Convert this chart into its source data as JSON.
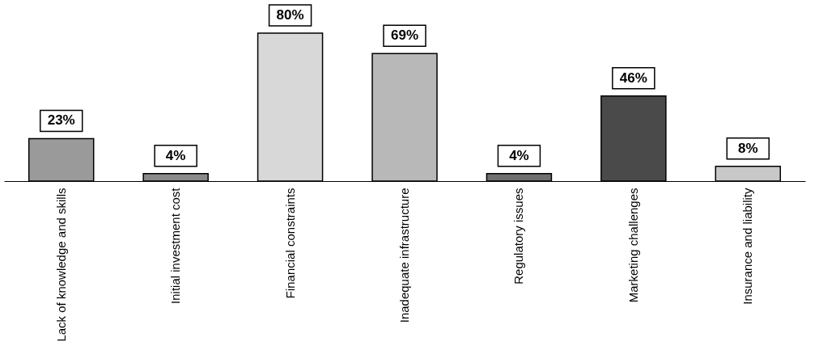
{
  "chart_data": {
    "type": "bar",
    "categories": [
      "Lack of knowledge and skills",
      "Initial investment cost",
      "Financial constraints",
      "Inadequate infrastructure",
      "Regulatory issues",
      "Marketing challenges",
      "Insurance and liability"
    ],
    "values": [
      23,
      4,
      80,
      69,
      4,
      46,
      8
    ],
    "colors": [
      "#9a9a9a",
      "#8a8a8a",
      "#d8d8d8",
      "#b8b8b8",
      "#707070",
      "#4a4a4a",
      "#c8c8c8"
    ],
    "value_labels": [
      "23%",
      "4%",
      "80%",
      "69%",
      "4%",
      "46%",
      "8%"
    ]
  }
}
